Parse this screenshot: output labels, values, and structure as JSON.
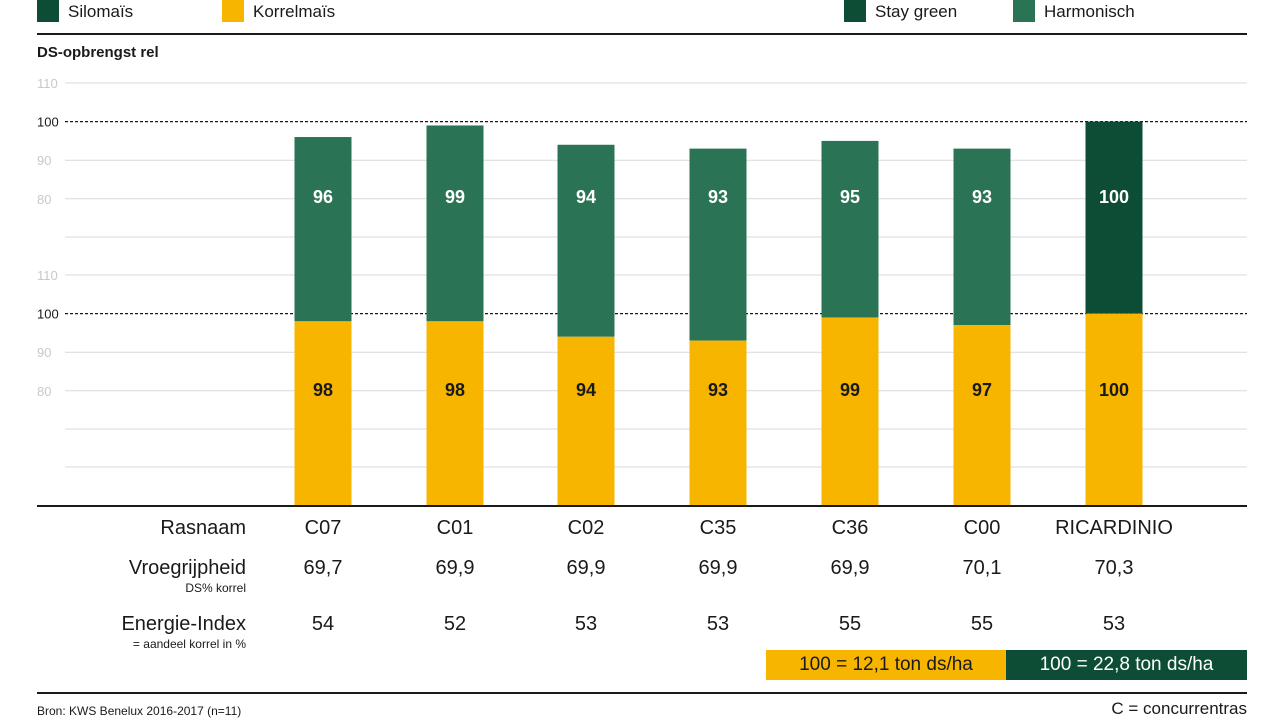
{
  "legend": {
    "silomais": {
      "label": "Silomaïs",
      "color": "#0e4d35"
    },
    "korrelmais": {
      "label": "Korrelmaïs",
      "color": "#f7b500"
    },
    "stay_green": {
      "label": "Stay green",
      "color": "#0e4d35"
    },
    "harmonisch": {
      "label": "Harmonisch",
      "color": "#2a7355"
    }
  },
  "chart_data": {
    "type": "bar",
    "ylabel": "DS-opbrengst rel",
    "categories": [
      "C07",
      "C01",
      "C02",
      "C35",
      "C36",
      "C00",
      "RICARDINIO"
    ],
    "panels": [
      {
        "name": "Silomaïs",
        "ylim": [
          60,
          110
        ],
        "yticks": [
          80,
          90,
          100,
          110
        ],
        "reference_line": 100,
        "values": [
          96,
          99,
          94,
          93,
          95,
          93,
          100
        ],
        "types": [
          "Harmonisch",
          "Harmonisch",
          "Harmonisch",
          "Harmonisch",
          "Harmonisch",
          "Harmonisch",
          "Stay green"
        ]
      },
      {
        "name": "Korrelmaïs",
        "ylim": [
          70,
          110
        ],
        "yticks": [
          80,
          90,
          100,
          110
        ],
        "reference_line": 100,
        "values": [
          98,
          98,
          94,
          93,
          99,
          97,
          100
        ]
      }
    ],
    "colors": {
      "Harmonisch": "#2a7355",
      "Stay green": "#0e4d35",
      "Korrelmaïs": "#f7b500"
    }
  },
  "table": {
    "rows": [
      {
        "label": "Rasnaam",
        "sub": "",
        "values": [
          "C07",
          "C01",
          "C02",
          "C35",
          "C36",
          "C00",
          "RICARDINIO"
        ]
      },
      {
        "label": "Vroegrijpheid",
        "sub": "DS% korrel",
        "values": [
          "69,7",
          "69,9",
          "69,9",
          "69,9",
          "69,9",
          "70,1",
          "70,3"
        ]
      },
      {
        "label": "Energie-Index",
        "sub": "= aandeel korrel in %",
        "values": [
          "54",
          "52",
          "53",
          "53",
          "55",
          "55",
          "53"
        ]
      }
    ]
  },
  "reference_boxes": {
    "korrel": "100 = 12,1 ton ds/ha",
    "silo": "100 = 22,8 ton ds/ha"
  },
  "footer": {
    "source": "Bron: KWS Benelux 2016-2017 (n=11)",
    "note": "C = concurrentras"
  }
}
